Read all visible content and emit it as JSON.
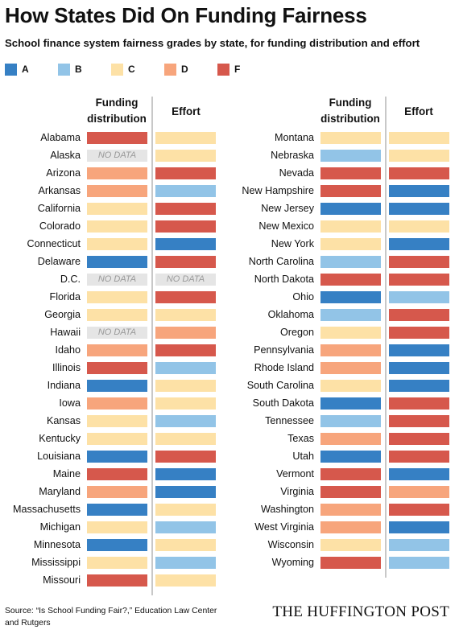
{
  "title": "How States Did On Funding Fairness",
  "subtitle": "School finance system fairness grades by state, for funding distribution and effort",
  "legend": [
    {
      "grade": "A",
      "color": "#3680c4"
    },
    {
      "grade": "B",
      "color": "#92c4e7"
    },
    {
      "grade": "C",
      "color": "#fde1a6"
    },
    {
      "grade": "D",
      "color": "#f7a57c"
    },
    {
      "grade": "F",
      "color": "#d6584c"
    }
  ],
  "column_headers": {
    "funding_distribution": "Funding distribution",
    "effort": "Effort"
  },
  "no_data_label": "NO DATA",
  "source": "Source: “Is School Funding Fair?,” Education Law Center and Rutgers",
  "publisher": "THE HUFFINGTON POST",
  "chart_data": {
    "type": "table",
    "columns": [
      "Funding distribution",
      "Effort"
    ],
    "categories": [
      "A",
      "B",
      "C",
      "D",
      "F"
    ],
    "panels": [
      {
        "rows": [
          {
            "state": "Alabama",
            "funding": "F",
            "effort": "C"
          },
          {
            "state": "Alaska",
            "funding": null,
            "effort": "C"
          },
          {
            "state": "Arizona",
            "funding": "D",
            "effort": "F"
          },
          {
            "state": "Arkansas",
            "funding": "D",
            "effort": "B"
          },
          {
            "state": "California",
            "funding": "C",
            "effort": "F"
          },
          {
            "state": "Colorado",
            "funding": "C",
            "effort": "F"
          },
          {
            "state": "Connecticut",
            "funding": "C",
            "effort": "A"
          },
          {
            "state": "Delaware",
            "funding": "A",
            "effort": "F"
          },
          {
            "state": "D.C.",
            "funding": null,
            "effort": null
          },
          {
            "state": "Florida",
            "funding": "C",
            "effort": "F"
          },
          {
            "state": "Georgia",
            "funding": "C",
            "effort": "C"
          },
          {
            "state": "Hawaii",
            "funding": null,
            "effort": "D"
          },
          {
            "state": "Idaho",
            "funding": "D",
            "effort": "F"
          },
          {
            "state": "Illinois",
            "funding": "F",
            "effort": "B"
          },
          {
            "state": "Indiana",
            "funding": "A",
            "effort": "C"
          },
          {
            "state": "Iowa",
            "funding": "D",
            "effort": "C"
          },
          {
            "state": "Kansas",
            "funding": "C",
            "effort": "B"
          },
          {
            "state": "Kentucky",
            "funding": "C",
            "effort": "C"
          },
          {
            "state": "Louisiana",
            "funding": "A",
            "effort": "F"
          },
          {
            "state": "Maine",
            "funding": "F",
            "effort": "A"
          },
          {
            "state": "Maryland",
            "funding": "D",
            "effort": "A"
          },
          {
            "state": "Massachusetts",
            "funding": "A",
            "effort": "C"
          },
          {
            "state": "Michigan",
            "funding": "C",
            "effort": "B"
          },
          {
            "state": "Minnesota",
            "funding": "A",
            "effort": "C"
          },
          {
            "state": "Mississippi",
            "funding": "C",
            "effort": "B"
          },
          {
            "state": "Missouri",
            "funding": "F",
            "effort": "C"
          }
        ]
      },
      {
        "rows": [
          {
            "state": "Montana",
            "funding": "C",
            "effort": "C"
          },
          {
            "state": "Nebraska",
            "funding": "B",
            "effort": "C"
          },
          {
            "state": "Nevada",
            "funding": "F",
            "effort": "F"
          },
          {
            "state": "New Hampshire",
            "funding": "F",
            "effort": "A"
          },
          {
            "state": "New Jersey",
            "funding": "A",
            "effort": "A"
          },
          {
            "state": "New Mexico",
            "funding": "C",
            "effort": "C"
          },
          {
            "state": "New York",
            "funding": "C",
            "effort": "A"
          },
          {
            "state": "North Carolina",
            "funding": "B",
            "effort": "F"
          },
          {
            "state": "North Dakota",
            "funding": "F",
            "effort": "F"
          },
          {
            "state": "Ohio",
            "funding": "A",
            "effort": "B"
          },
          {
            "state": "Oklahoma",
            "funding": "B",
            "effort": "F"
          },
          {
            "state": "Oregon",
            "funding": "C",
            "effort": "F"
          },
          {
            "state": "Pennsylvania",
            "funding": "D",
            "effort": "A"
          },
          {
            "state": "Rhode Island",
            "funding": "D",
            "effort": "A"
          },
          {
            "state": "South Carolina",
            "funding": "C",
            "effort": "A"
          },
          {
            "state": "South Dakota",
            "funding": "A",
            "effort": "F"
          },
          {
            "state": "Tennessee",
            "funding": "B",
            "effort": "F"
          },
          {
            "state": "Texas",
            "funding": "D",
            "effort": "F"
          },
          {
            "state": "Utah",
            "funding": "A",
            "effort": "F"
          },
          {
            "state": "Vermont",
            "funding": "F",
            "effort": "A"
          },
          {
            "state": "Virginia",
            "funding": "F",
            "effort": "D"
          },
          {
            "state": "Washington",
            "funding": "D",
            "effort": "F"
          },
          {
            "state": "West Virginia",
            "funding": "D",
            "effort": "A"
          },
          {
            "state": "Wisconsin",
            "funding": "C",
            "effort": "B"
          },
          {
            "state": "Wyoming",
            "funding": "F",
            "effort": "B"
          }
        ]
      }
    ]
  }
}
